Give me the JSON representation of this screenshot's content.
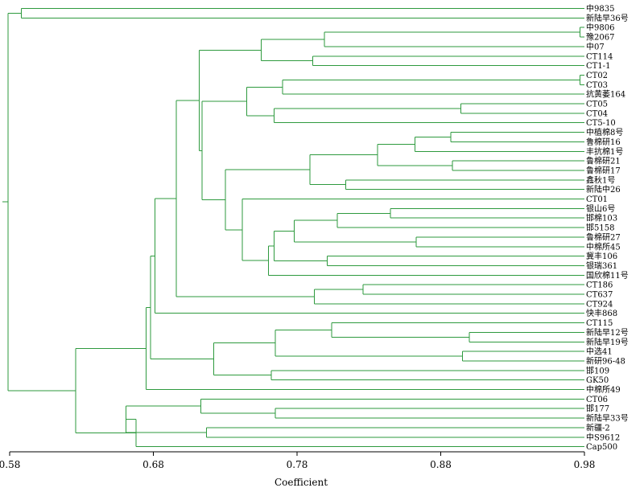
{
  "dendrogram": {
    "leaves": [
      "中9835",
      "新陆早36号",
      "中9806",
      "豫2067",
      "中07",
      "CT114",
      "CT1-1",
      "CT02",
      "CT03",
      "抗黄萎164",
      "CT05",
      "CT04",
      "CT5-10",
      "中植棉8号",
      "鲁棉研16",
      "丰抗棉1号",
      "鲁棉研21",
      "鲁棉研17",
      "鑫秋1号",
      "新陆中26",
      "CT01",
      "银山6号",
      "邯棉103",
      "邯5158",
      "鲁棉研27",
      "中棉所45",
      "冀丰106",
      "银瑞361",
      "国欣棉11号",
      "CT186",
      "CT637",
      "CT924",
      "快丰868",
      "CT115",
      "新陆早12号",
      "新陆早19号",
      "中选41",
      "新研96-48",
      "邯109",
      "GK50",
      "中棉所49",
      "CT06",
      "邯177",
      "新陆早33号",
      "新疆-2",
      "中S9612",
      "Cap500"
    ],
    "merges": [
      {
        "items": [
          0,
          1
        ],
        "h": 0.588
      },
      {
        "items": [
          2,
          3
        ],
        "h": 0.977
      },
      {
        "items": [
          "n1",
          4
        ],
        "h": 0.799
      },
      {
        "items": [
          5,
          6
        ],
        "h": 0.791
      },
      {
        "items": [
          "n2",
          "n3"
        ],
        "h": 0.755
      },
      {
        "items": [
          7,
          8
        ],
        "h": 0.977
      },
      {
        "items": [
          "n5",
          9
        ],
        "h": 0.77
      },
      {
        "items": [
          10,
          11
        ],
        "h": 0.894
      },
      {
        "items": [
          "n7",
          12
        ],
        "h": 0.764
      },
      {
        "items": [
          "n6",
          "n8"
        ],
        "h": 0.745
      },
      {
        "items": [
          13,
          14
        ],
        "h": 0.887
      },
      {
        "items": [
          "n10",
          15
        ],
        "h": 0.862
      },
      {
        "items": [
          16,
          17
        ],
        "h": 0.888
      },
      {
        "items": [
          "n11",
          "n12"
        ],
        "h": 0.836
      },
      {
        "items": [
          18,
          19
        ],
        "h": 0.814
      },
      {
        "items": [
          "n13",
          "n14"
        ],
        "h": 0.789
      },
      {
        "items": [
          21,
          22
        ],
        "h": 0.845
      },
      {
        "items": [
          "n16",
          23
        ],
        "h": 0.808
      },
      {
        "items": [
          24,
          25
        ],
        "h": 0.863
      },
      {
        "items": [
          "n17",
          "n18"
        ],
        "h": 0.778
      },
      {
        "items": [
          26,
          27
        ],
        "h": 0.801
      },
      {
        "items": [
          "n19",
          "n20"
        ],
        "h": 0.764
      },
      {
        "items": [
          "n21",
          28
        ],
        "h": 0.76
      },
      {
        "items": [
          20,
          "n22"
        ],
        "h": 0.742
      },
      {
        "items": [
          "n15",
          "n23"
        ],
        "h": 0.73
      },
      {
        "items": [
          "n9",
          "n24"
        ],
        "h": 0.714
      },
      {
        "items": [
          "n4",
          "n25"
        ],
        "h": 0.712
      },
      {
        "items": [
          29,
          30
        ],
        "h": 0.826
      },
      {
        "items": [
          "n27",
          31
        ],
        "h": 0.792
      },
      {
        "items": [
          "n26",
          "n28"
        ],
        "h": 0.696
      },
      {
        "items": [
          "n29",
          32
        ],
        "h": 0.681
      },
      {
        "items": [
          34,
          35
        ],
        "h": 0.9
      },
      {
        "items": [
          33,
          "n31"
        ],
        "h": 0.804
      },
      {
        "items": [
          36,
          37
        ],
        "h": 0.895
      },
      {
        "items": [
          "n32",
          "n33"
        ],
        "h": 0.765
      },
      {
        "items": [
          38,
          39
        ],
        "h": 0.762
      },
      {
        "items": [
          "n34",
          "n35"
        ],
        "h": 0.722
      },
      {
        "items": [
          "n30",
          "n36"
        ],
        "h": 0.678
      },
      {
        "items": [
          "n37",
          40
        ],
        "h": 0.675
      },
      {
        "items": [
          42,
          43
        ],
        "h": 0.765
      },
      {
        "items": [
          41,
          "n39"
        ],
        "h": 0.713
      },
      {
        "items": [
          44,
          45
        ],
        "h": 0.717
      },
      {
        "items": [
          "n40",
          "n41"
        ],
        "h": 0.661
      },
      {
        "items": [
          "n42",
          46
        ],
        "h": 0.668
      },
      {
        "items": [
          "n38",
          "n43"
        ],
        "h": 0.626
      },
      {
        "items": [
          "n44",
          "n0"
        ],
        "h": 0.579
      }
    ],
    "root_stub": 0.575
  },
  "axis": {
    "min": 0.58,
    "max": 0.98,
    "ticks": [
      0.58,
      0.68,
      0.78,
      0.88,
      0.98
    ],
    "tick_labels": [
      "0.58",
      "0.68",
      "0.78",
      "0.88",
      "0.98"
    ],
    "title": "Coefficient"
  },
  "colors": {
    "tree": "#2e9a3e",
    "axis": "#000000"
  }
}
